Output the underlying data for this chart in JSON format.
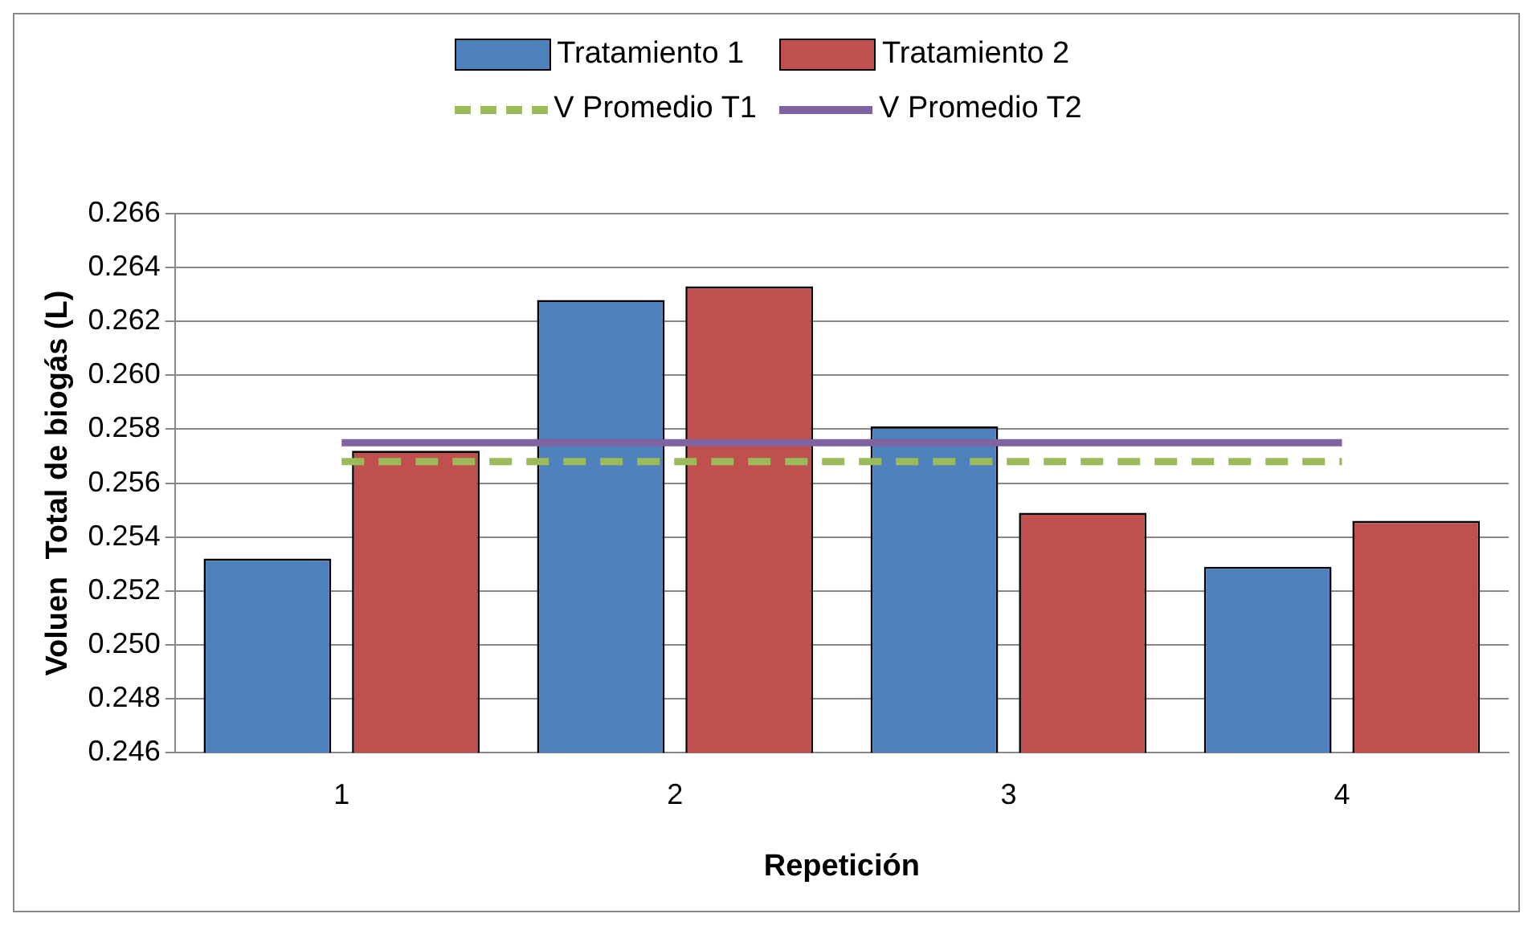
{
  "chart_data": {
    "type": "bar",
    "xlabel": "Repetición",
    "ylabel": "Voluen  Total de biogás (L)",
    "categories": [
      "1",
      "2",
      "3",
      "4"
    ],
    "series": [
      {
        "name": "Tratamiento 1",
        "color": "#4f81bd",
        "values": [
          0.2532,
          0.2628,
          0.2581,
          0.2529
        ]
      },
      {
        "name": "Tratamiento 2",
        "color": "#c0504d",
        "values": [
          0.2572,
          0.2633,
          0.2549,
          0.2546
        ]
      },
      {
        "name": "V Promedio T1",
        "type": "line",
        "color": "#9bbb59",
        "line_style": "dashed",
        "values": [
          0.2568,
          0.2568,
          0.2568,
          0.2568
        ]
      },
      {
        "name": "V Promedio T2",
        "type": "line",
        "color": "#8064a2",
        "line_style": "solid",
        "values": [
          0.2575,
          0.2575,
          0.2575,
          0.2575
        ]
      }
    ],
    "ylim": [
      0.246,
      0.266
    ],
    "yticks": [
      {
        "value": 0.246,
        "label": "0.246"
      },
      {
        "value": 0.248,
        "label": "0.248"
      },
      {
        "value": 0.25,
        "label": "0.250"
      },
      {
        "value": 0.252,
        "label": "0.252"
      },
      {
        "value": 0.254,
        "label": "0.254"
      },
      {
        "value": 0.256,
        "label": "0.256"
      },
      {
        "value": 0.258,
        "label": "0.258"
      },
      {
        "value": 0.26,
        "label": "0.260"
      },
      {
        "value": 0.262,
        "label": "0.262"
      },
      {
        "value": 0.264,
        "label": "0.264"
      },
      {
        "value": 0.266,
        "label": "0.266"
      }
    ],
    "grid": "y",
    "legend": "top",
    "marker": "none"
  }
}
